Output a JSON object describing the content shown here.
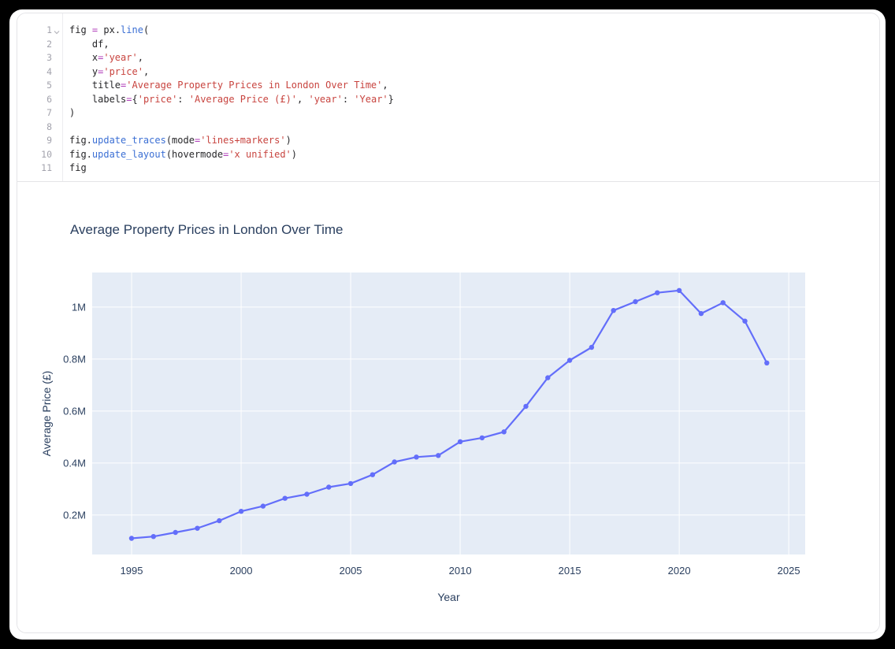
{
  "window": {
    "background": "#000000",
    "card_background": "#ffffff",
    "cell_border": "#e4e4e7"
  },
  "code_editor": {
    "lines": [
      {
        "number": "1",
        "foldable": true,
        "segments": [
          [
            "fig ",
            "p"
          ],
          [
            "=",
            "o"
          ],
          [
            " px.",
            "p"
          ],
          [
            "line",
            "f"
          ],
          [
            "(",
            "p"
          ]
        ]
      },
      {
        "number": "2",
        "foldable": false,
        "segments": [
          [
            "    df,",
            "p"
          ]
        ]
      },
      {
        "number": "3",
        "foldable": false,
        "segments": [
          [
            "    x",
            "p"
          ],
          [
            "=",
            "o"
          ],
          [
            "'year'",
            "s"
          ],
          [
            ",",
            "p"
          ]
        ]
      },
      {
        "number": "4",
        "foldable": false,
        "segments": [
          [
            "    y",
            "p"
          ],
          [
            "=",
            "o"
          ],
          [
            "'price'",
            "s"
          ],
          [
            ",",
            "p"
          ]
        ]
      },
      {
        "number": "5",
        "foldable": false,
        "segments": [
          [
            "    title",
            "p"
          ],
          [
            "=",
            "o"
          ],
          [
            "'Average Property Prices in London Over Time'",
            "s"
          ],
          [
            ",",
            "p"
          ]
        ]
      },
      {
        "number": "6",
        "foldable": false,
        "segments": [
          [
            "    labels",
            "p"
          ],
          [
            "=",
            "o"
          ],
          [
            "{",
            "p"
          ],
          [
            "'price'",
            "s"
          ],
          [
            ": ",
            "p"
          ],
          [
            "'Average Price (£)'",
            "s"
          ],
          [
            ", ",
            "p"
          ],
          [
            "'year'",
            "s"
          ],
          [
            ": ",
            "p"
          ],
          [
            "'Year'",
            "s"
          ],
          [
            "}",
            "p"
          ]
        ]
      },
      {
        "number": "7",
        "foldable": false,
        "segments": [
          [
            ")",
            "p"
          ]
        ]
      },
      {
        "number": "8",
        "foldable": false,
        "segments": [
          [
            "",
            "p"
          ]
        ]
      },
      {
        "number": "9",
        "foldable": false,
        "segments": [
          [
            "fig.",
            "p"
          ],
          [
            "update_traces",
            "f"
          ],
          [
            "(mode",
            "p"
          ],
          [
            "=",
            "o"
          ],
          [
            "'lines+markers'",
            "s"
          ],
          [
            ")",
            "p"
          ]
        ]
      },
      {
        "number": "10",
        "foldable": false,
        "segments": [
          [
            "fig.",
            "p"
          ],
          [
            "update_layout",
            "f"
          ],
          [
            "(hovermode",
            "p"
          ],
          [
            "=",
            "o"
          ],
          [
            "'x unified'",
            "s"
          ],
          [
            ")",
            "p"
          ]
        ]
      },
      {
        "number": "11",
        "foldable": false,
        "segments": [
          [
            "fig",
            "p"
          ]
        ]
      }
    ]
  },
  "chart_data": {
    "type": "line",
    "mode": "lines+markers",
    "title": "Average Property Prices in London Over Time",
    "xlabel": "Year",
    "ylabel": "Average Price (£)",
    "legend": false,
    "grid": true,
    "plot_bgcolor": "#e5ecf6",
    "grid_color": "#ffffff",
    "line_color": "#636efa",
    "font_color": "#2a3f5f",
    "xlim": [
      1993.2,
      2025.75
    ],
    "ylim": [
      48000,
      1133000
    ],
    "xticks": [
      1995,
      2000,
      2005,
      2010,
      2015,
      2020,
      2025
    ],
    "yticks": [
      {
        "value": 200000,
        "label": "0.2M"
      },
      {
        "value": 400000,
        "label": "0.4M"
      },
      {
        "value": 600000,
        "label": "0.6M"
      },
      {
        "value": 800000,
        "label": "0.8M"
      },
      {
        "value": 1000000,
        "label": "1M"
      }
    ],
    "series": [
      {
        "name": "price",
        "x": [
          1995,
          1996,
          1997,
          1998,
          1999,
          2000,
          2001,
          2002,
          2003,
          2004,
          2005,
          2006,
          2007,
          2008,
          2009,
          2010,
          2011,
          2012,
          2013,
          2014,
          2015,
          2016,
          2017,
          2018,
          2019,
          2020,
          2021,
          2022,
          2023,
          2024
        ],
        "y": [
          110000,
          117000,
          133000,
          149000,
          178000,
          214000,
          234000,
          264000,
          280000,
          307000,
          321000,
          355000,
          404000,
          423000,
          429000,
          482000,
          497000,
          520000,
          618000,
          728000,
          795000,
          845000,
          987000,
          1021000,
          1055000,
          1064000,
          975000,
          1017000,
          946000,
          785000
        ]
      }
    ]
  }
}
